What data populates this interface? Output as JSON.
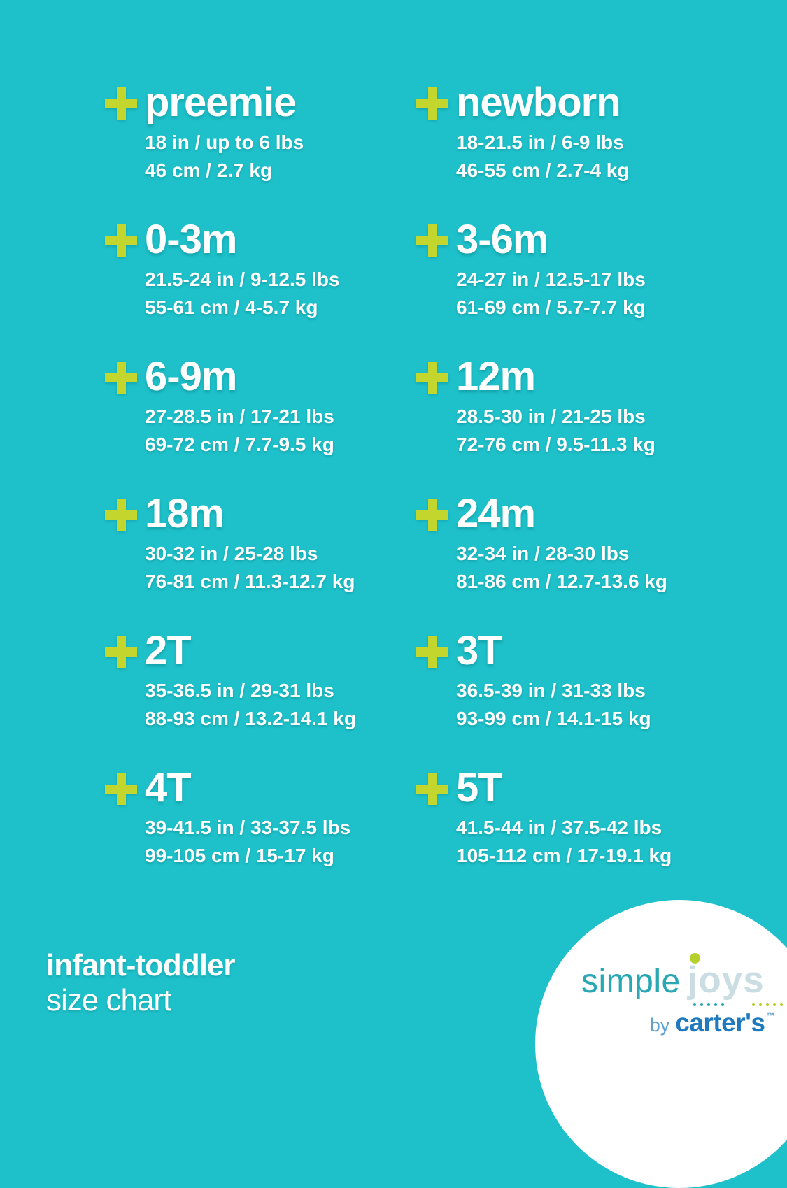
{
  "colors": {
    "bg": "#1ec1ca",
    "plus": "#c2d62e",
    "text": "#ffffff",
    "circle": "#ffffff",
    "logo_simple": "#2aa7b4",
    "logo_joys": "#c9dde3",
    "logo_dot": "#b5cf2b",
    "logo_by": "#5ea0d2",
    "logo_carters": "#1e79be"
  },
  "sizes": [
    {
      "label": "preemie",
      "imperial": "18 in / up to 6 lbs",
      "metric": "46 cm / 2.7 kg"
    },
    {
      "label": "newborn",
      "imperial": "18-21.5 in / 6-9 lbs",
      "metric": "46-55 cm / 2.7-4 kg"
    },
    {
      "label": "0-3m",
      "imperial": "21.5-24 in / 9-12.5 lbs",
      "metric": "55-61 cm / 4-5.7 kg"
    },
    {
      "label": "3-6m",
      "imperial": "24-27 in / 12.5-17 lbs",
      "metric": "61-69 cm / 5.7-7.7 kg"
    },
    {
      "label": "6-9m",
      "imperial": "27-28.5 in / 17-21 lbs",
      "metric": "69-72 cm / 7.7-9.5 kg"
    },
    {
      "label": "12m",
      "imperial": "28.5-30 in / 21-25 lbs",
      "metric": "72-76 cm / 9.5-11.3 kg"
    },
    {
      "label": "18m",
      "imperial": "30-32 in / 25-28 lbs",
      "metric": "76-81 cm / 11.3-12.7 kg"
    },
    {
      "label": "24m",
      "imperial": "32-34 in / 28-30 lbs",
      "metric": "81-86 cm / 12.7-13.6 kg"
    },
    {
      "label": "2T",
      "imperial": "35-36.5 in / 29-31 lbs",
      "metric": "88-93 cm / 13.2-14.1 kg"
    },
    {
      "label": "3T",
      "imperial": "36.5-39 in / 31-33 lbs",
      "metric": "93-99 cm / 14.1-15 kg"
    },
    {
      "label": "4T",
      "imperial": "39-41.5 in / 33-37.5 lbs",
      "metric": "99-105 cm / 15-17 kg"
    },
    {
      "label": "5T",
      "imperial": "41.5-44 in / 37.5-42 lbs",
      "metric": "105-112 cm / 17-19.1 kg"
    }
  ],
  "footer": {
    "line1": "infant-toddler",
    "line2": "size chart"
  },
  "logo": {
    "word1": "simple",
    "word2": "joys",
    "by": "by",
    "brand": "carter's",
    "trademark": "™"
  },
  "chart_data": {
    "type": "table",
    "title": "infant-toddler size chart",
    "columns": [
      "size",
      "height_in",
      "weight_lbs",
      "height_cm",
      "weight_kg"
    ],
    "rows": [
      [
        "preemie",
        "18",
        "up to 6",
        "46",
        "2.7"
      ],
      [
        "newborn",
        "18-21.5",
        "6-9",
        "46-55",
        "2.7-4"
      ],
      [
        "0-3m",
        "21.5-24",
        "9-12.5",
        "55-61",
        "4-5.7"
      ],
      [
        "3-6m",
        "24-27",
        "12.5-17",
        "61-69",
        "5.7-7.7"
      ],
      [
        "6-9m",
        "27-28.5",
        "17-21",
        "69-72",
        "7.7-9.5"
      ],
      [
        "12m",
        "28.5-30",
        "21-25",
        "72-76",
        "9.5-11.3"
      ],
      [
        "18m",
        "30-32",
        "25-28",
        "76-81",
        "11.3-12.7"
      ],
      [
        "24m",
        "32-34",
        "28-30",
        "81-86",
        "12.7-13.6"
      ],
      [
        "2T",
        "35-36.5",
        "29-31",
        "88-93",
        "13.2-14.1"
      ],
      [
        "3T",
        "36.5-39",
        "31-33",
        "93-99",
        "14.1-15"
      ],
      [
        "4T",
        "39-41.5",
        "33-37.5",
        "99-105",
        "15-17"
      ],
      [
        "5T",
        "41.5-44",
        "37.5-42",
        "105-112",
        "17-19.1"
      ]
    ]
  }
}
